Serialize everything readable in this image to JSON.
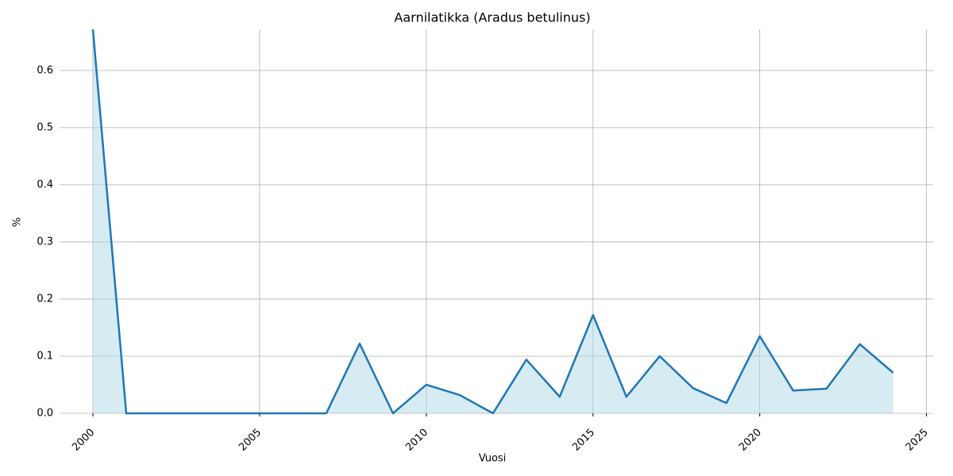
{
  "chart_data": {
    "type": "line",
    "title": "Aarnilatikka (Aradus betulinus)",
    "x_label": "Vuosi",
    "y_label": "%",
    "x": [
      2000,
      2001,
      2002,
      2003,
      2004,
      2005,
      2006,
      2007,
      2008,
      2009,
      2010,
      2011,
      2012,
      2013,
      2014,
      2015,
      2016,
      2017,
      2018,
      2019,
      2020,
      2021,
      2022,
      2023,
      2024
    ],
    "series": [
      {
        "name": "Aarnilatikka",
        "color": "#1f77b4",
        "fill": "#add8e6",
        "values": [
          0.672,
          0,
          0,
          0,
          0,
          0,
          0,
          0,
          0.122,
          0,
          0.05,
          0.032,
          0,
          0.094,
          0.029,
          0.172,
          0.029,
          0.1,
          0.044,
          0.018,
          0.135,
          0.04,
          0.043,
          0.121,
          0.071
        ]
      }
    ],
    "xlim": [
      1999,
      2025.2
    ],
    "ylim": [
      0,
      0.672
    ],
    "xticks": [
      2000,
      2005,
      2010,
      2015,
      2020,
      2025
    ],
    "yticks": [
      0.0,
      0.1,
      0.2,
      0.3,
      0.4,
      0.5,
      0.6
    ],
    "grid": true
  }
}
